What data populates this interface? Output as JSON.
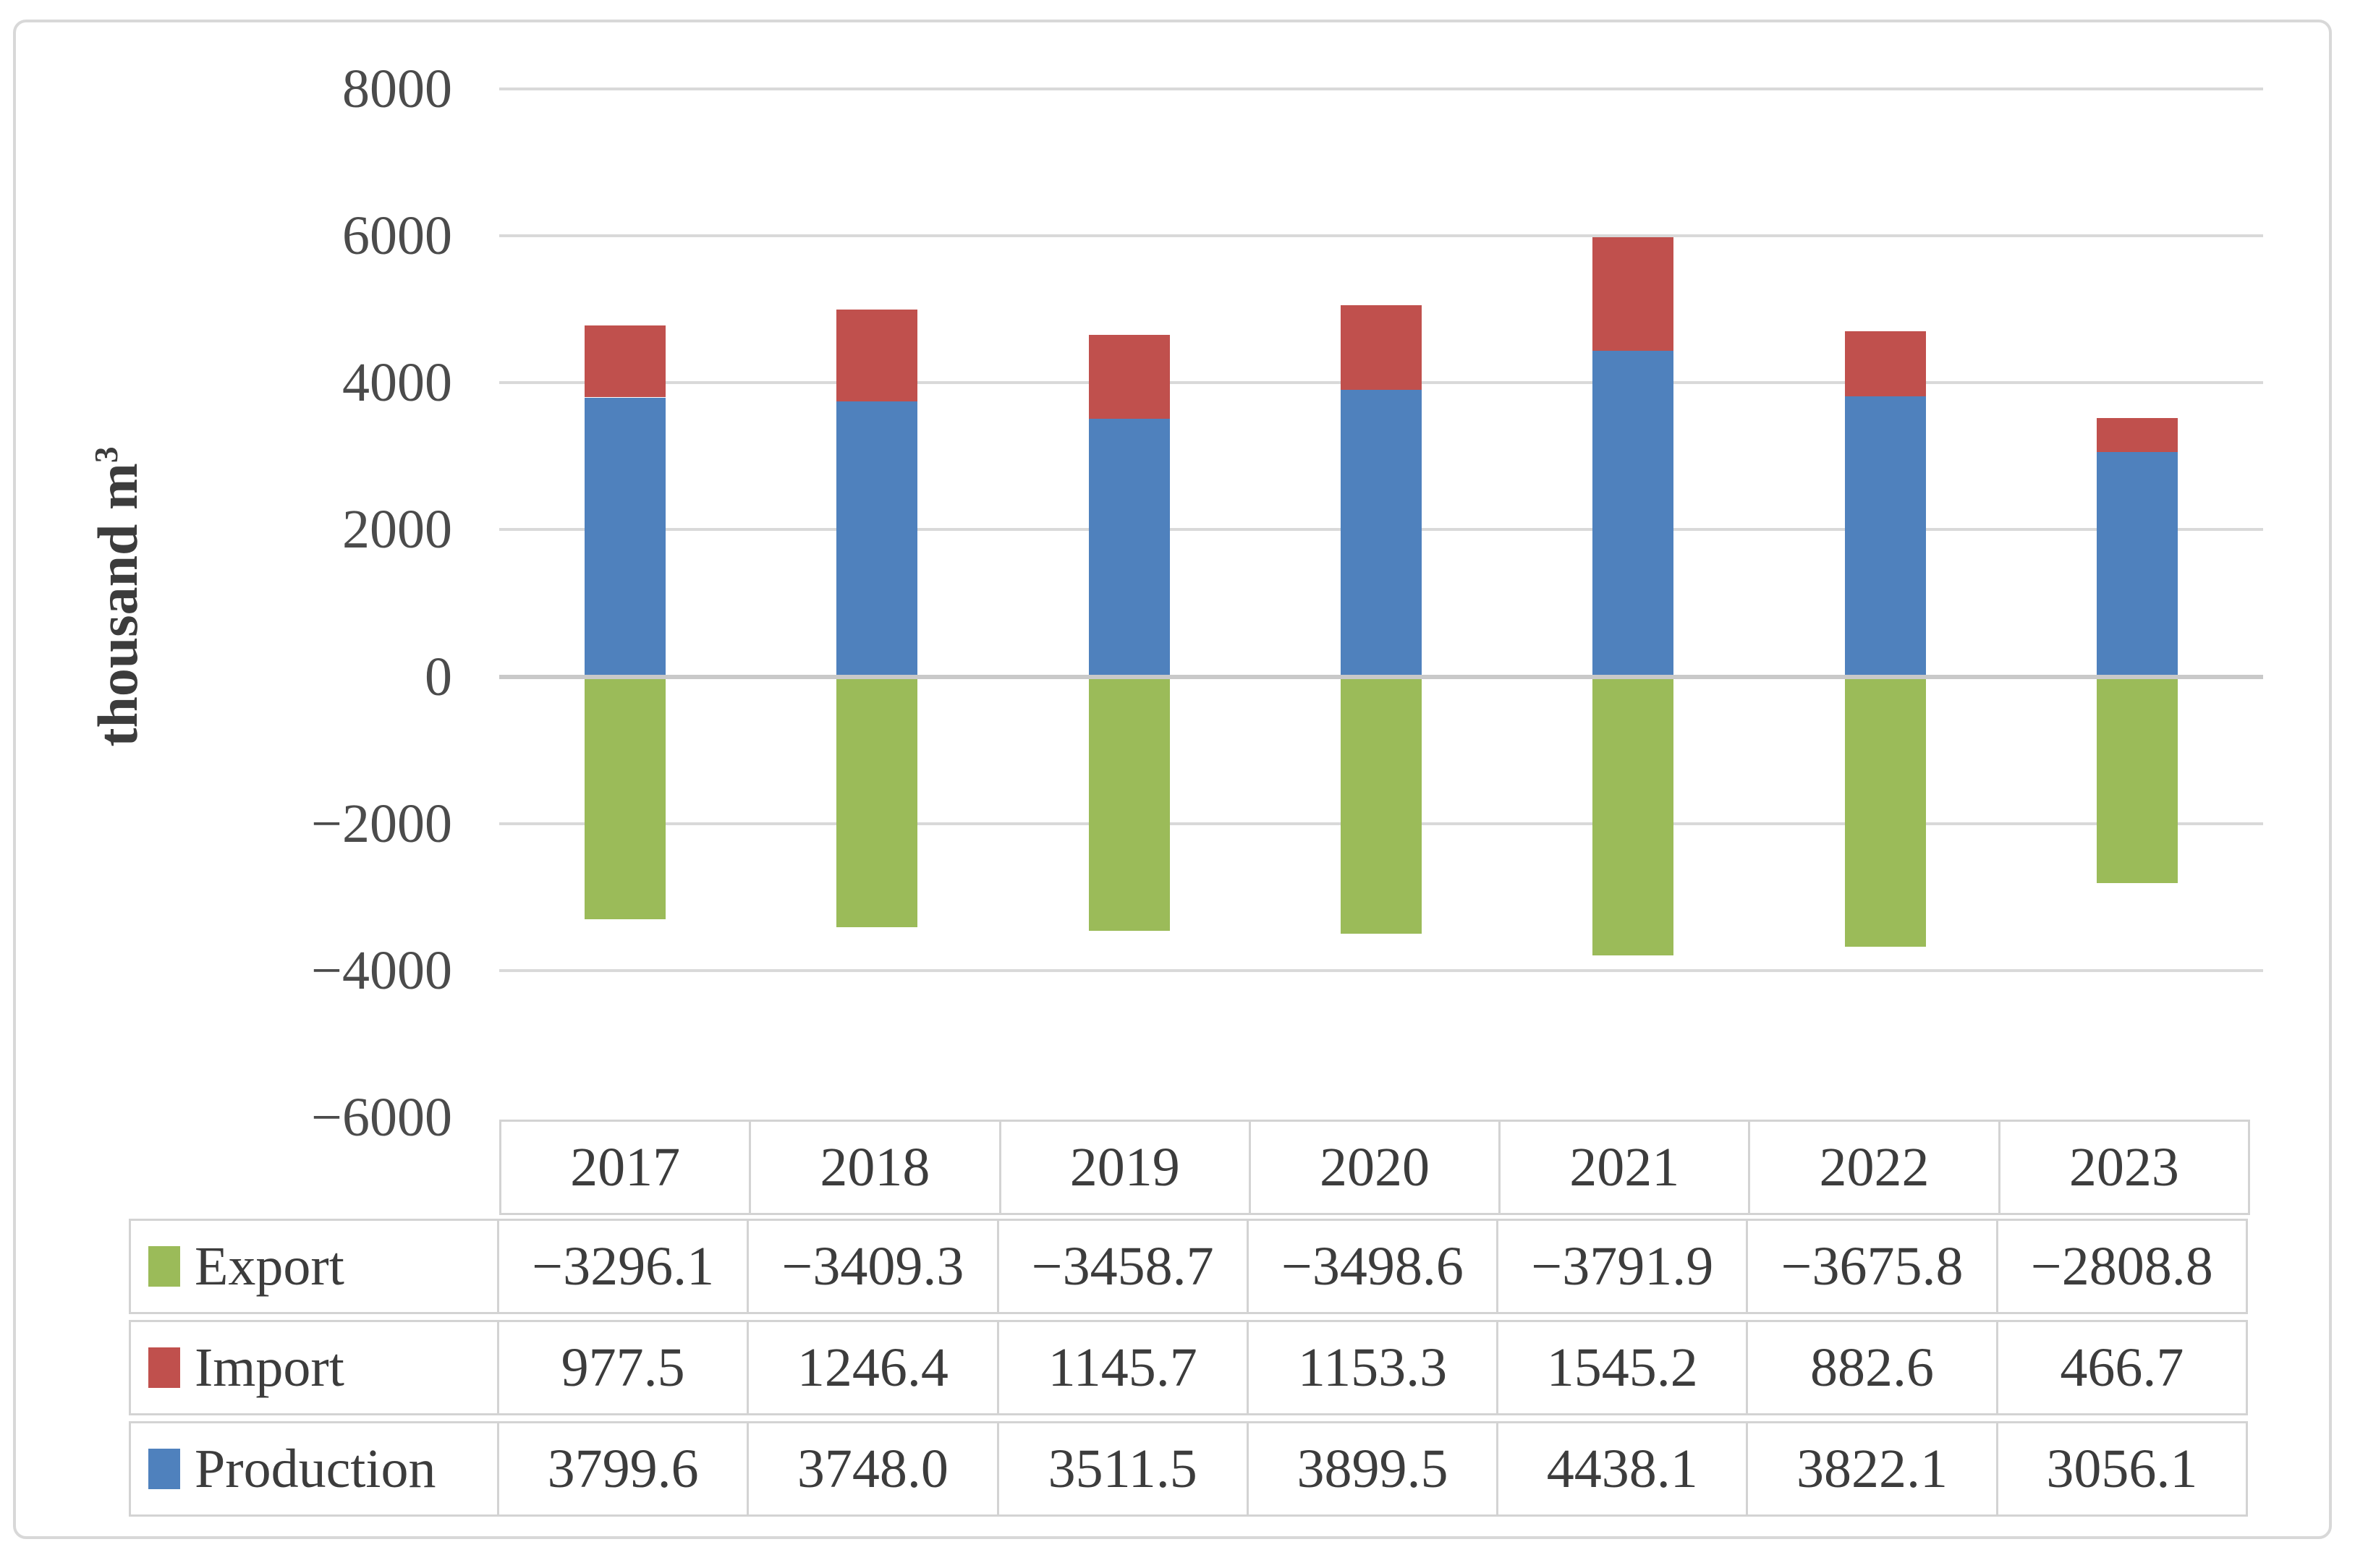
{
  "palette": {
    "gridline": "#D9D9D9",
    "zero_line": "#C9C9C9",
    "frame_border": "#D8D8D8",
    "table_border": "#D3D3D3",
    "axis_text": "#4B4B4B",
    "table_text": "#3C3C3C"
  },
  "y_axis": {
    "title_text": "thousand m",
    "title_sup": "3",
    "ticks": [
      8000,
      6000,
      4000,
      2000,
      0,
      -2000,
      -4000,
      -6000
    ]
  },
  "chart_data": {
    "type": "bar",
    "stacked": true,
    "categories": [
      "2017",
      "2018",
      "2019",
      "2020",
      "2021",
      "2022",
      "2023"
    ],
    "series": [
      {
        "name": "Export",
        "color": "#9BBB59",
        "values": [
          -3296.1,
          -3409.3,
          -3458.7,
          -3498.6,
          -3791.9,
          -3675.8,
          -2808.8
        ]
      },
      {
        "name": "Import",
        "color": "#C0504D",
        "values": [
          977.5,
          1246.4,
          1145.7,
          1153.3,
          1545.2,
          882.6,
          466.7
        ]
      },
      {
        "name": "Production",
        "color": "#4F81BD",
        "values": [
          3799.6,
          3748.0,
          3511.5,
          3899.5,
          4438.1,
          3822.1,
          3056.1
        ]
      }
    ],
    "title": "",
    "xlabel": "",
    "ylabel": "thousand m³",
    "ylim": [
      -6000,
      8000
    ],
    "grid": true,
    "gridline_step": 2000,
    "legend_position": "table-rows-left",
    "value_decimals": 1
  }
}
